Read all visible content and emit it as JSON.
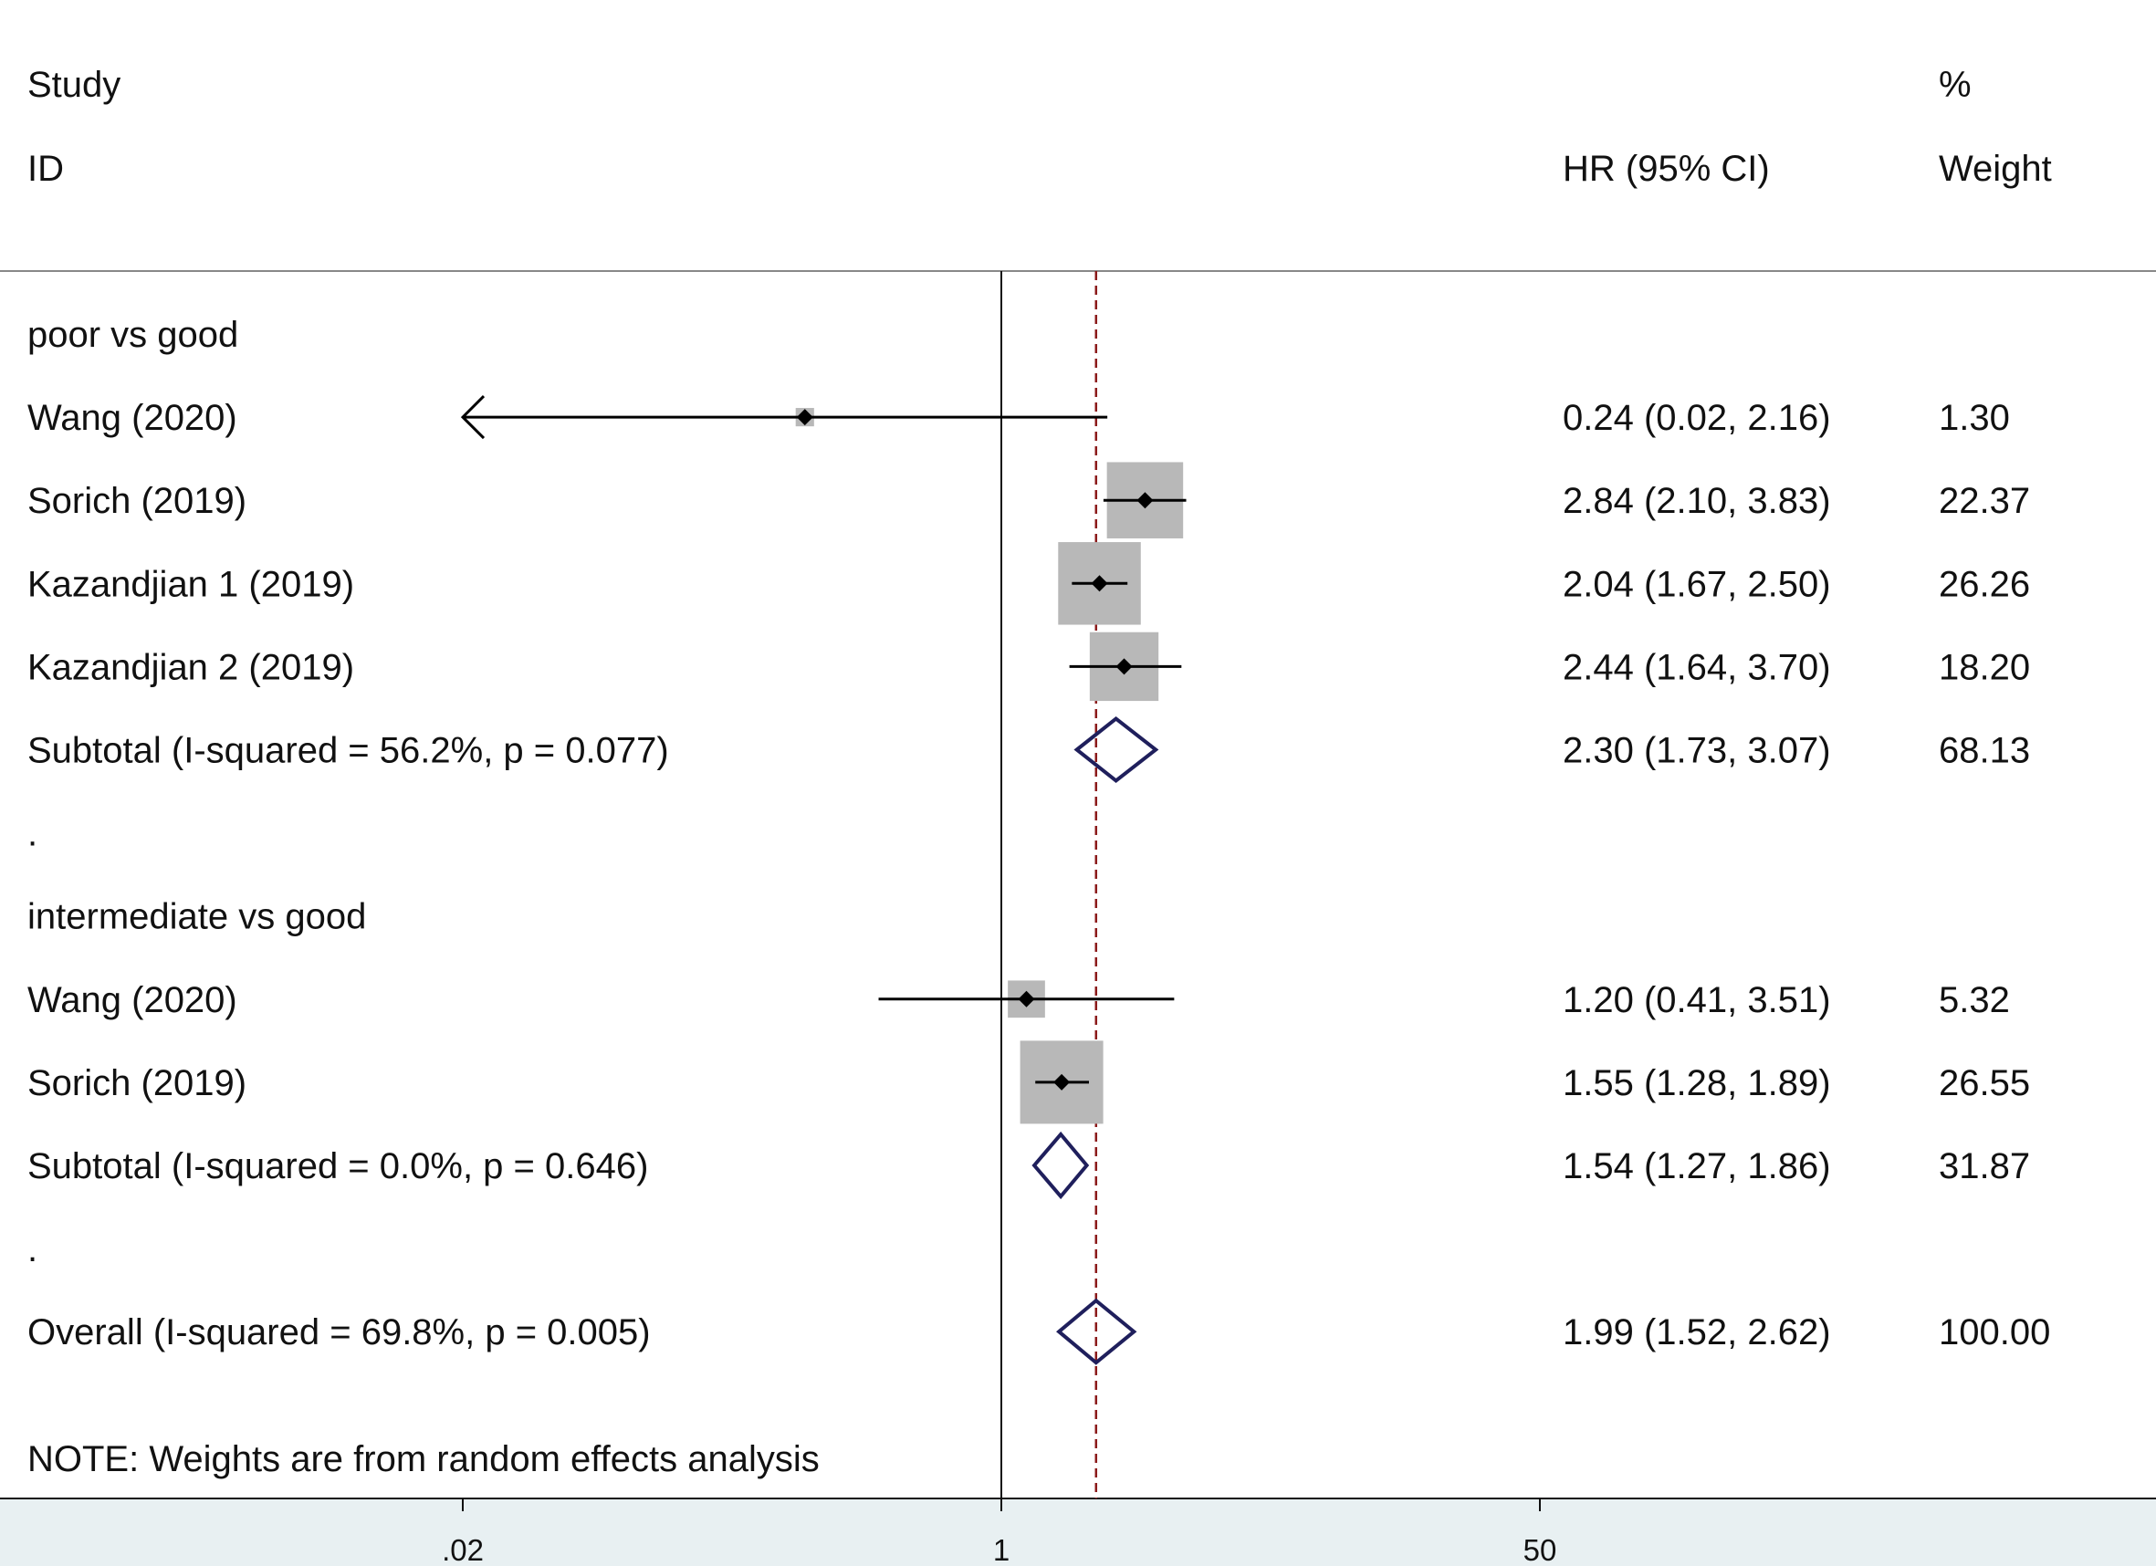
{
  "chart_data": {
    "type": "forest",
    "header": {
      "study_line1": "Study",
      "study_line2": "ID",
      "effect": "HR (95% CI)",
      "weight_line1": "%",
      "weight_line2": "Weight"
    },
    "x_axis": {
      "scale": "log",
      "ticks": [
        {
          "value": 0.02,
          "label": ".02"
        },
        {
          "value": 1,
          "label": "1"
        },
        {
          "value": 50,
          "label": "50"
        }
      ],
      "null_line": 1,
      "overall_line": 1.99
    },
    "rows": [
      {
        "kind": "group",
        "label": "poor vs good"
      },
      {
        "kind": "study",
        "label": "Wang  (2020)",
        "hr": 0.24,
        "lo": 0.02,
        "hi": 2.16,
        "ci_text": "0.24 (0.02, 2.16)",
        "weight": 1.3,
        "weight_text": "1.30",
        "left_arrow": true
      },
      {
        "kind": "study",
        "label": "Sorich  (2019)",
        "hr": 2.84,
        "lo": 2.1,
        "hi": 3.83,
        "ci_text": "2.84 (2.10, 3.83)",
        "weight": 22.37,
        "weight_text": "22.37"
      },
      {
        "kind": "study",
        "label": "Kazandjian 1 (2019)",
        "hr": 2.04,
        "lo": 1.67,
        "hi": 2.5,
        "ci_text": "2.04 (1.67, 2.50)",
        "weight": 26.26,
        "weight_text": "26.26"
      },
      {
        "kind": "study",
        "label": "Kazandjian 2  (2019)",
        "hr": 2.44,
        "lo": 1.64,
        "hi": 3.7,
        "ci_text": "2.44 (1.64, 3.70)",
        "weight": 18.2,
        "weight_text": "18.20"
      },
      {
        "kind": "subtotal",
        "label": "Subtotal  (I-squared = 56.2%, p = 0.077)",
        "hr": 2.3,
        "lo": 1.73,
        "hi": 3.07,
        "ci_text": "2.30 (1.73, 3.07)",
        "weight": 68.13,
        "weight_text": "68.13"
      },
      {
        "kind": "dot",
        "label": "."
      },
      {
        "kind": "group",
        "label": "intermediate vs good"
      },
      {
        "kind": "study",
        "label": "Wang  (2020)",
        "hr": 1.2,
        "lo": 0.41,
        "hi": 3.51,
        "ci_text": "1.20 (0.41, 3.51)",
        "weight": 5.32,
        "weight_text": "5.32"
      },
      {
        "kind": "study",
        "label": "Sorich  (2019)",
        "hr": 1.55,
        "lo": 1.28,
        "hi": 1.89,
        "ci_text": "1.55 (1.28, 1.89)",
        "weight": 26.55,
        "weight_text": "26.55"
      },
      {
        "kind": "subtotal",
        "label": "Subtotal  (I-squared = 0.0%, p = 0.646)",
        "hr": 1.54,
        "lo": 1.27,
        "hi": 1.86,
        "ci_text": "1.54 (1.27, 1.86)",
        "weight": 31.87,
        "weight_text": "31.87"
      },
      {
        "kind": "dot",
        "label": "."
      },
      {
        "kind": "overall",
        "label": "Overall  (I-squared = 69.8%, p = 0.005)",
        "hr": 1.99,
        "lo": 1.52,
        "hi": 2.62,
        "ci_text": "1.99 (1.52, 2.62)",
        "weight": 100.0,
        "weight_text": "100.00"
      }
    ],
    "note": "NOTE: Weights are from random effects analysis",
    "colors": {
      "box": "#b8b8b8",
      "ci": "#000000",
      "diamond": "#1f1f5c",
      "overall_line": "#8b1a1a",
      "axis_band": "#e8f0f2",
      "separator": "#888888"
    }
  }
}
